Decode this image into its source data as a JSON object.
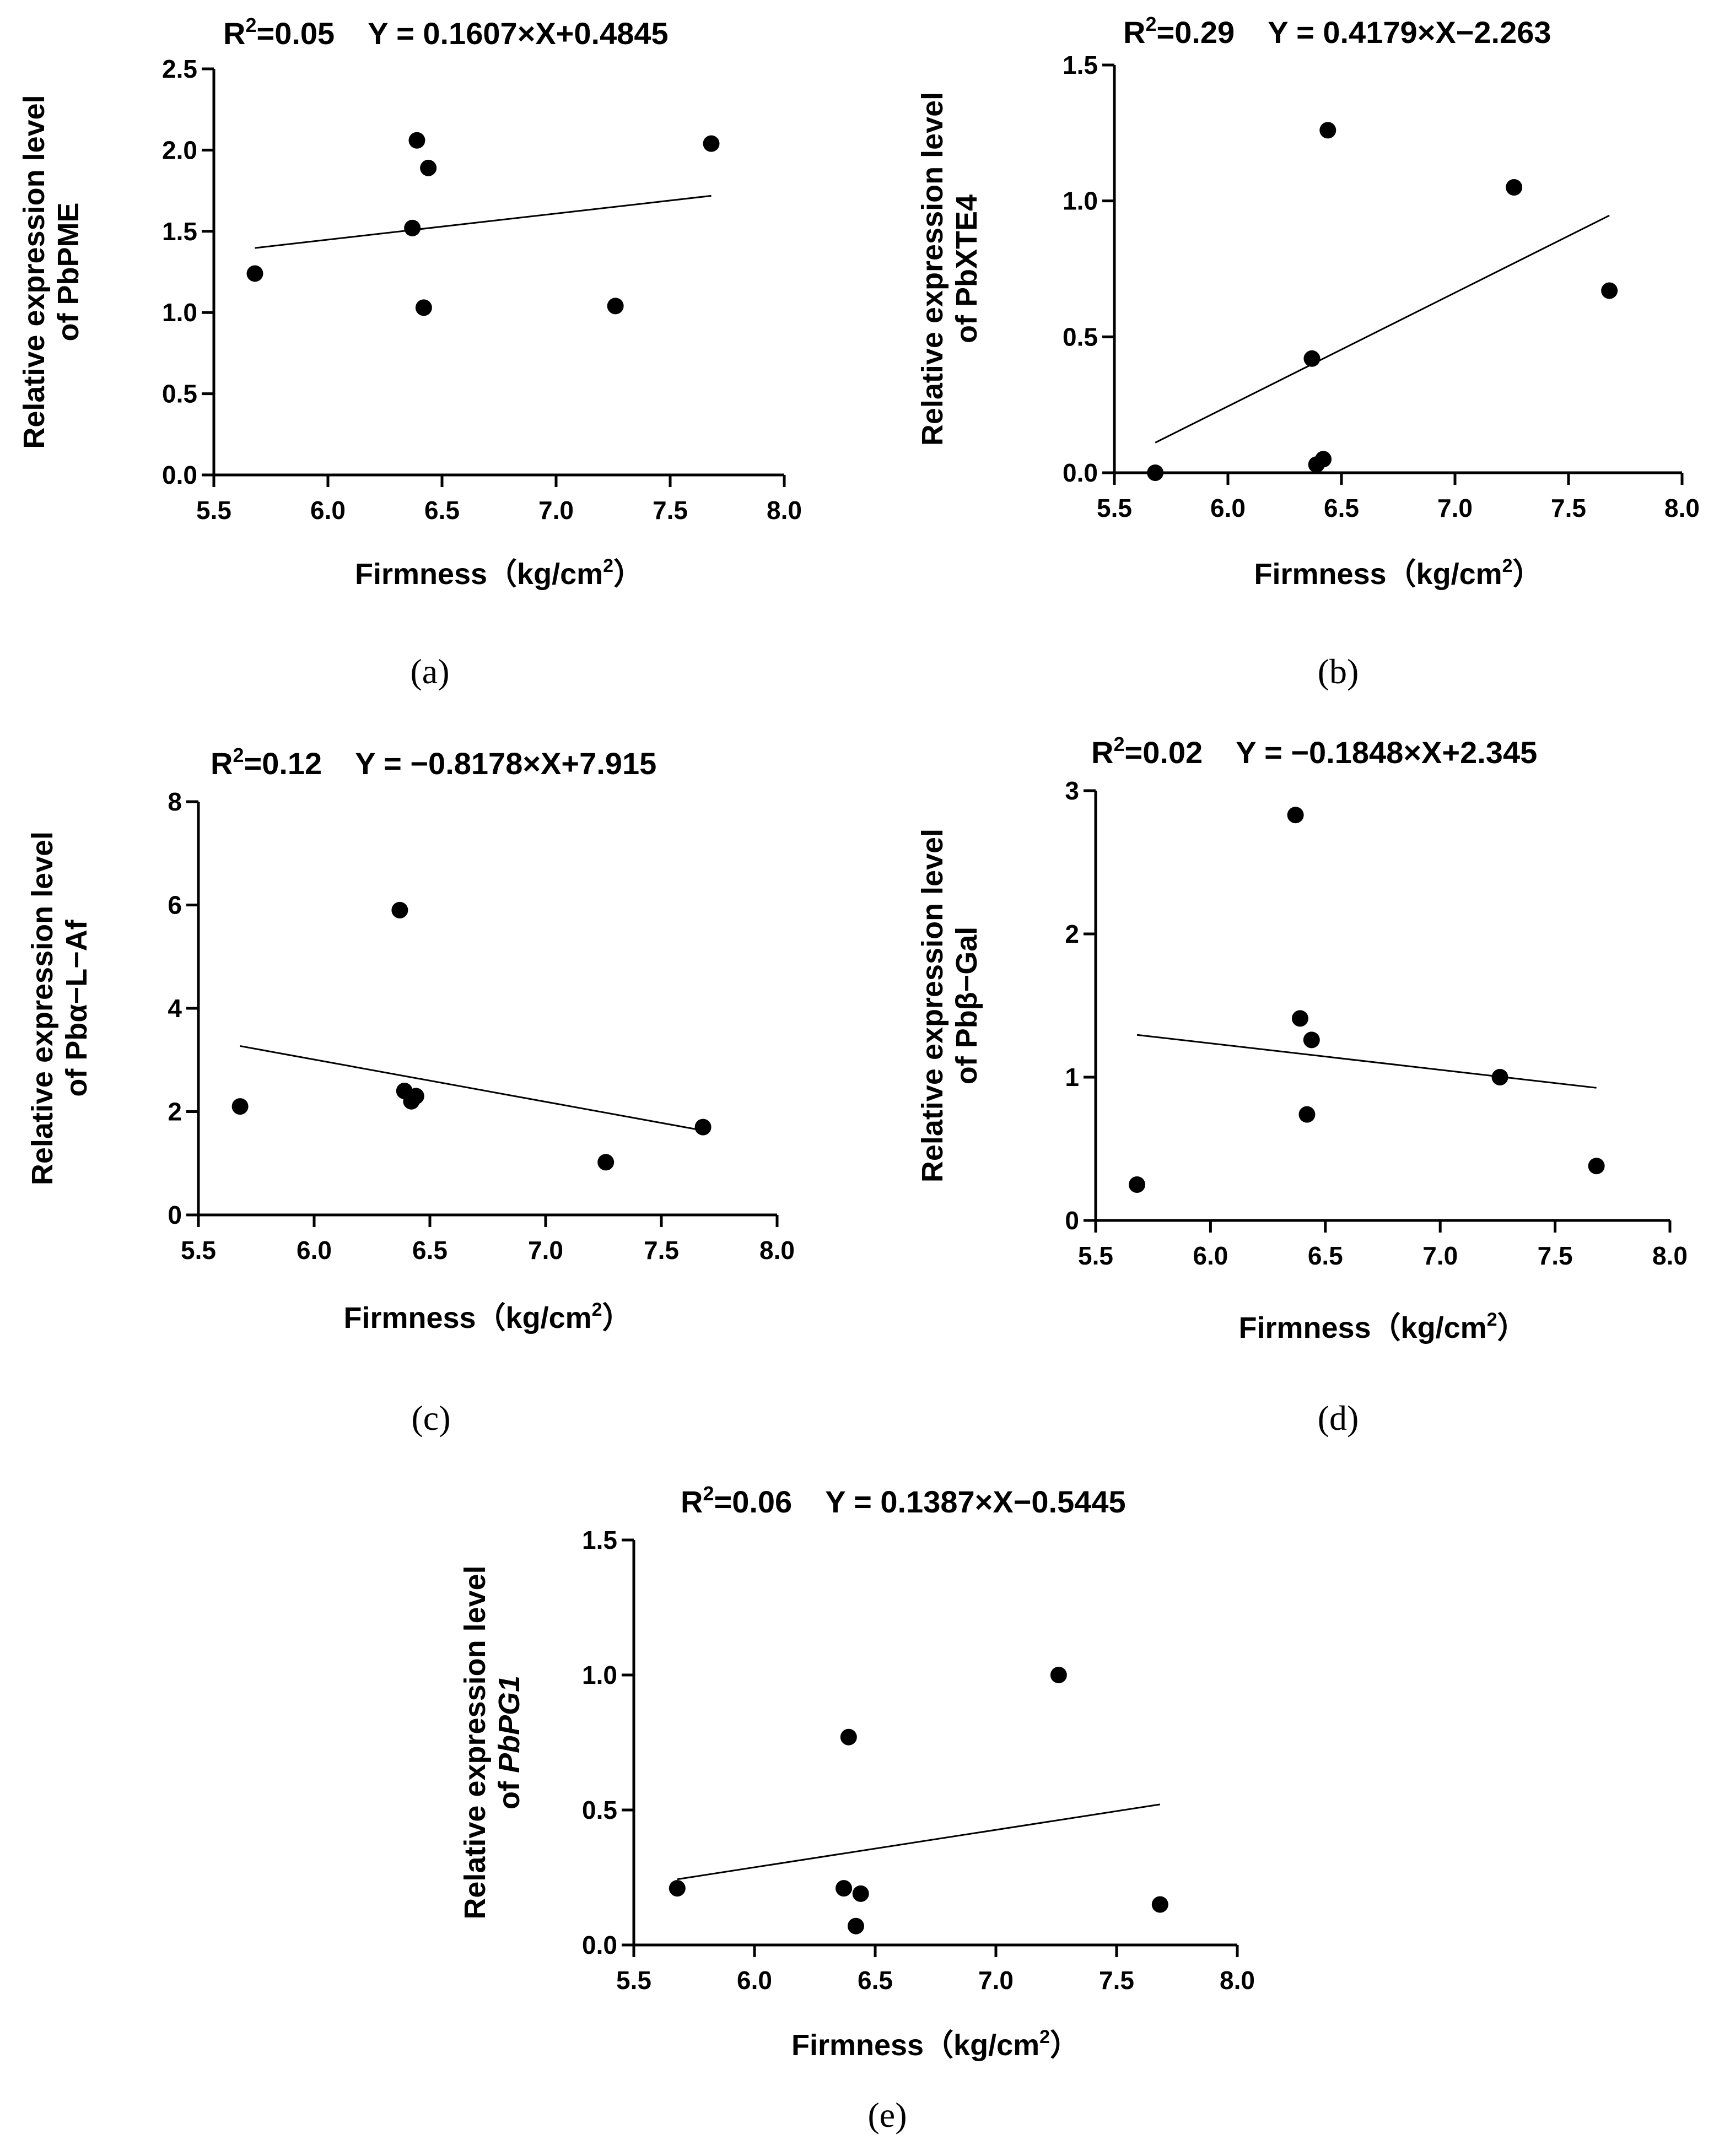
{
  "chart_data": [
    {
      "id": "a",
      "type": "scatter",
      "panel_label": "(a)",
      "title": "R²=0.05    Y = 0.1607×X+0.4845",
      "eq_r2_prefix": "R",
      "eq_r2_sup": "2",
      "eq_r2_value": "=0.05",
      "eq_formula": "Y = 0.1607×X+0.4845",
      "xlabel": "Firmness (kg/cm²)",
      "xlabel_main": "Firmness（kg/cm",
      "xlabel_sup": "2",
      "xlabel_end": "）",
      "ylabel_line1": "Relative expression level",
      "ylabel_line2": "of PbPME",
      "ylabel_gene_italic": false,
      "xlim": [
        5.5,
        8.0
      ],
      "ylim": [
        0.0,
        2.5
      ],
      "xticks": [
        "5.5",
        "6.0",
        "6.5",
        "7.0",
        "7.5",
        "8.0"
      ],
      "yticks": [
        "0.0",
        "0.5",
        "1.0",
        "1.5",
        "2.0",
        "2.5"
      ],
      "points": [
        [
          5.68,
          1.24
        ],
        [
          6.37,
          1.52
        ],
        [
          6.39,
          2.06
        ],
        [
          6.42,
          1.03
        ],
        [
          6.44,
          1.89
        ],
        [
          7.26,
          1.04
        ],
        [
          7.68,
          2.04
        ]
      ],
      "fit": {
        "slope": 0.1607,
        "intercept": 0.4845,
        "x_range": [
          5.68,
          7.68
        ]
      }
    },
    {
      "id": "b",
      "type": "scatter",
      "panel_label": "(b)",
      "title": "R²=0.29    Y = 0.4179×X−2.263",
      "eq_r2_prefix": "R",
      "eq_r2_sup": "2",
      "eq_r2_value": "=0.29",
      "eq_formula": "Y = 0.4179×X−2.263",
      "xlabel": "Firmness (kg/cm²)",
      "xlabel_main": "Firmness（kg/cm",
      "xlabel_sup": "2",
      "xlabel_end": "）",
      "ylabel_line1": "Relative expression level",
      "ylabel_line2": "of PbXTE4",
      "ylabel_gene_italic": false,
      "xlim": [
        5.5,
        8.0
      ],
      "ylim": [
        0.0,
        1.5
      ],
      "xticks": [
        "5.5",
        "6.0",
        "6.5",
        "7.0",
        "7.5",
        "8.0"
      ],
      "yticks": [
        "0.0",
        "0.5",
        "1.0",
        "1.5"
      ],
      "points": [
        [
          5.68,
          0.0
        ],
        [
          6.37,
          0.42
        ],
        [
          6.39,
          0.03
        ],
        [
          6.42,
          0.05
        ],
        [
          6.44,
          1.26
        ],
        [
          7.26,
          1.05
        ],
        [
          7.68,
          0.67
        ]
      ],
      "fit": {
        "slope": 0.4179,
        "intercept": -2.263,
        "x_range": [
          5.68,
          7.68
        ]
      }
    },
    {
      "id": "c",
      "type": "scatter",
      "panel_label": "(c)",
      "title": "R²=0.12    Y = −0.8178×X+7.915",
      "eq_r2_prefix": "R",
      "eq_r2_sup": "2",
      "eq_r2_value": "=0.12",
      "eq_formula": "Y = −0.8178×X+7.915",
      "xlabel": "Firmness (kg/cm²)",
      "xlabel_main": "Firmness（kg/cm",
      "xlabel_sup": "2",
      "xlabel_end": "）",
      "ylabel_line1": "Relative expression level",
      "ylabel_line2": "of Pbα−L−Af",
      "ylabel_gene_italic": false,
      "xlim": [
        5.5,
        8.0
      ],
      "ylim": [
        0,
        8
      ],
      "xticks": [
        "5.5",
        "6.0",
        "6.5",
        "7.0",
        "7.5",
        "8.0"
      ],
      "yticks": [
        "0",
        "2",
        "4",
        "6",
        "8"
      ],
      "points": [
        [
          5.68,
          2.1
        ],
        [
          6.37,
          5.9
        ],
        [
          6.39,
          2.4
        ],
        [
          6.42,
          2.2
        ],
        [
          6.44,
          2.3
        ],
        [
          7.26,
          1.02
        ],
        [
          7.68,
          1.7
        ]
      ],
      "fit": {
        "slope": -0.8178,
        "intercept": 7.915,
        "x_range": [
          5.68,
          7.68
        ]
      }
    },
    {
      "id": "d",
      "type": "scatter",
      "panel_label": "(d)",
      "title": "R²=0.02    Y = −0.1848×X+2.345",
      "eq_r2_prefix": "R",
      "eq_r2_sup": "2",
      "eq_r2_value": "=0.02",
      "eq_formula": "Y = −0.1848×X+2.345",
      "xlabel": "Firmness (kg/cm²)",
      "xlabel_main": "Firmness（kg/cm",
      "xlabel_sup": "2",
      "xlabel_end": "）",
      "ylabel_line1": "Relative expression level",
      "ylabel_line2": "of Pbβ−Gal",
      "ylabel_gene_italic": false,
      "xlim": [
        5.5,
        8.0
      ],
      "ylim": [
        0,
        3
      ],
      "xticks": [
        "5.5",
        "6.0",
        "6.5",
        "7.0",
        "7.5",
        "8.0"
      ],
      "yticks": [
        "0",
        "1",
        "2",
        "3"
      ],
      "points": [
        [
          5.68,
          0.25
        ],
        [
          6.37,
          2.83
        ],
        [
          6.39,
          1.41
        ],
        [
          6.42,
          0.74
        ],
        [
          6.44,
          1.26
        ],
        [
          7.26,
          1.0
        ],
        [
          7.68,
          0.38
        ]
      ],
      "fit": {
        "slope": -0.1848,
        "intercept": 2.345,
        "x_range": [
          5.68,
          7.68
        ]
      }
    },
    {
      "id": "e",
      "type": "scatter",
      "panel_label": "(e)",
      "title": "R²=0.06    Y = 0.1387×X−0.5445",
      "eq_r2_prefix": "R",
      "eq_r2_sup": "2",
      "eq_r2_value": "=0.06",
      "eq_formula": "Y = 0.1387×X−0.5445",
      "xlabel": "Firmness (kg/cm²)",
      "xlabel_main": "Firmness（kg/cm",
      "xlabel_sup": "2",
      "xlabel_end": "）",
      "ylabel_line1": "Relative expression level",
      "ylabel_line2": "of PbPG1",
      "ylabel_gene_italic": true,
      "xlim": [
        5.5,
        8.0
      ],
      "ylim": [
        0.0,
        1.5
      ],
      "xticks": [
        "5.5",
        "6.0",
        "6.5",
        "7.0",
        "7.5",
        "8.0"
      ],
      "yticks": [
        "0.0",
        "0.5",
        "1.0",
        "1.5"
      ],
      "points": [
        [
          5.68,
          0.21
        ],
        [
          6.37,
          0.21
        ],
        [
          6.39,
          0.77
        ],
        [
          6.42,
          0.07
        ],
        [
          6.44,
          0.19
        ],
        [
          7.26,
          1.0
        ],
        [
          7.68,
          0.15
        ]
      ],
      "fit": {
        "slope": 0.1387,
        "intercept": -0.5445,
        "x_range": [
          5.68,
          7.68
        ]
      }
    }
  ]
}
